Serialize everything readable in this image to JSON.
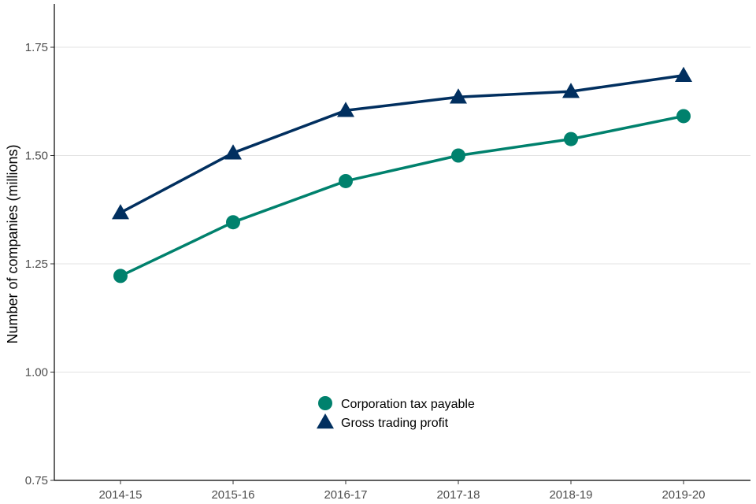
{
  "chart_data": {
    "type": "line",
    "categories": [
      "2014-15",
      "2015-16",
      "2016-17",
      "2017-18",
      "2018-19",
      "2019-20"
    ],
    "series": [
      {
        "name": "Corporation tax payable",
        "marker": "circle",
        "color": "#00816D",
        "values": [
          1.222,
          1.346,
          1.441,
          1.5,
          1.538,
          1.591
        ]
      },
      {
        "name": "Gross trading profit",
        "marker": "triangle",
        "color": "#012F5F",
        "values": [
          1.368,
          1.506,
          1.604,
          1.635,
          1.648,
          1.685
        ]
      }
    ],
    "title": "",
    "xlabel": "",
    "ylabel": "Number of companies (millions)",
    "ylim": [
      0.75,
      1.85
    ],
    "yticks": [
      "0.75",
      "1.00",
      "1.25",
      "1.50",
      "1.75"
    ],
    "grid": true,
    "legend_position": "bottom-center"
  }
}
